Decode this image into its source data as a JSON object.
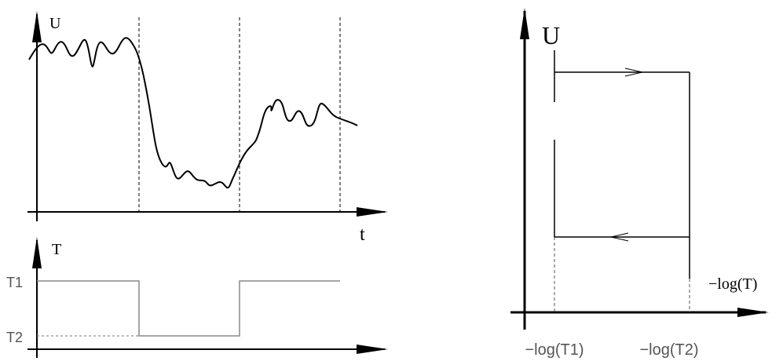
{
  "panels": {
    "signal": {
      "y_label": "U",
      "x_label": "t"
    },
    "temperature": {
      "y_label": "T",
      "levels": [
        "T1",
        "T2"
      ]
    },
    "hysteresis": {
      "y_label": "U",
      "x_label": "−log(T)",
      "x_marks": [
        "−log(T1)",
        "−log(T2)"
      ]
    }
  }
}
